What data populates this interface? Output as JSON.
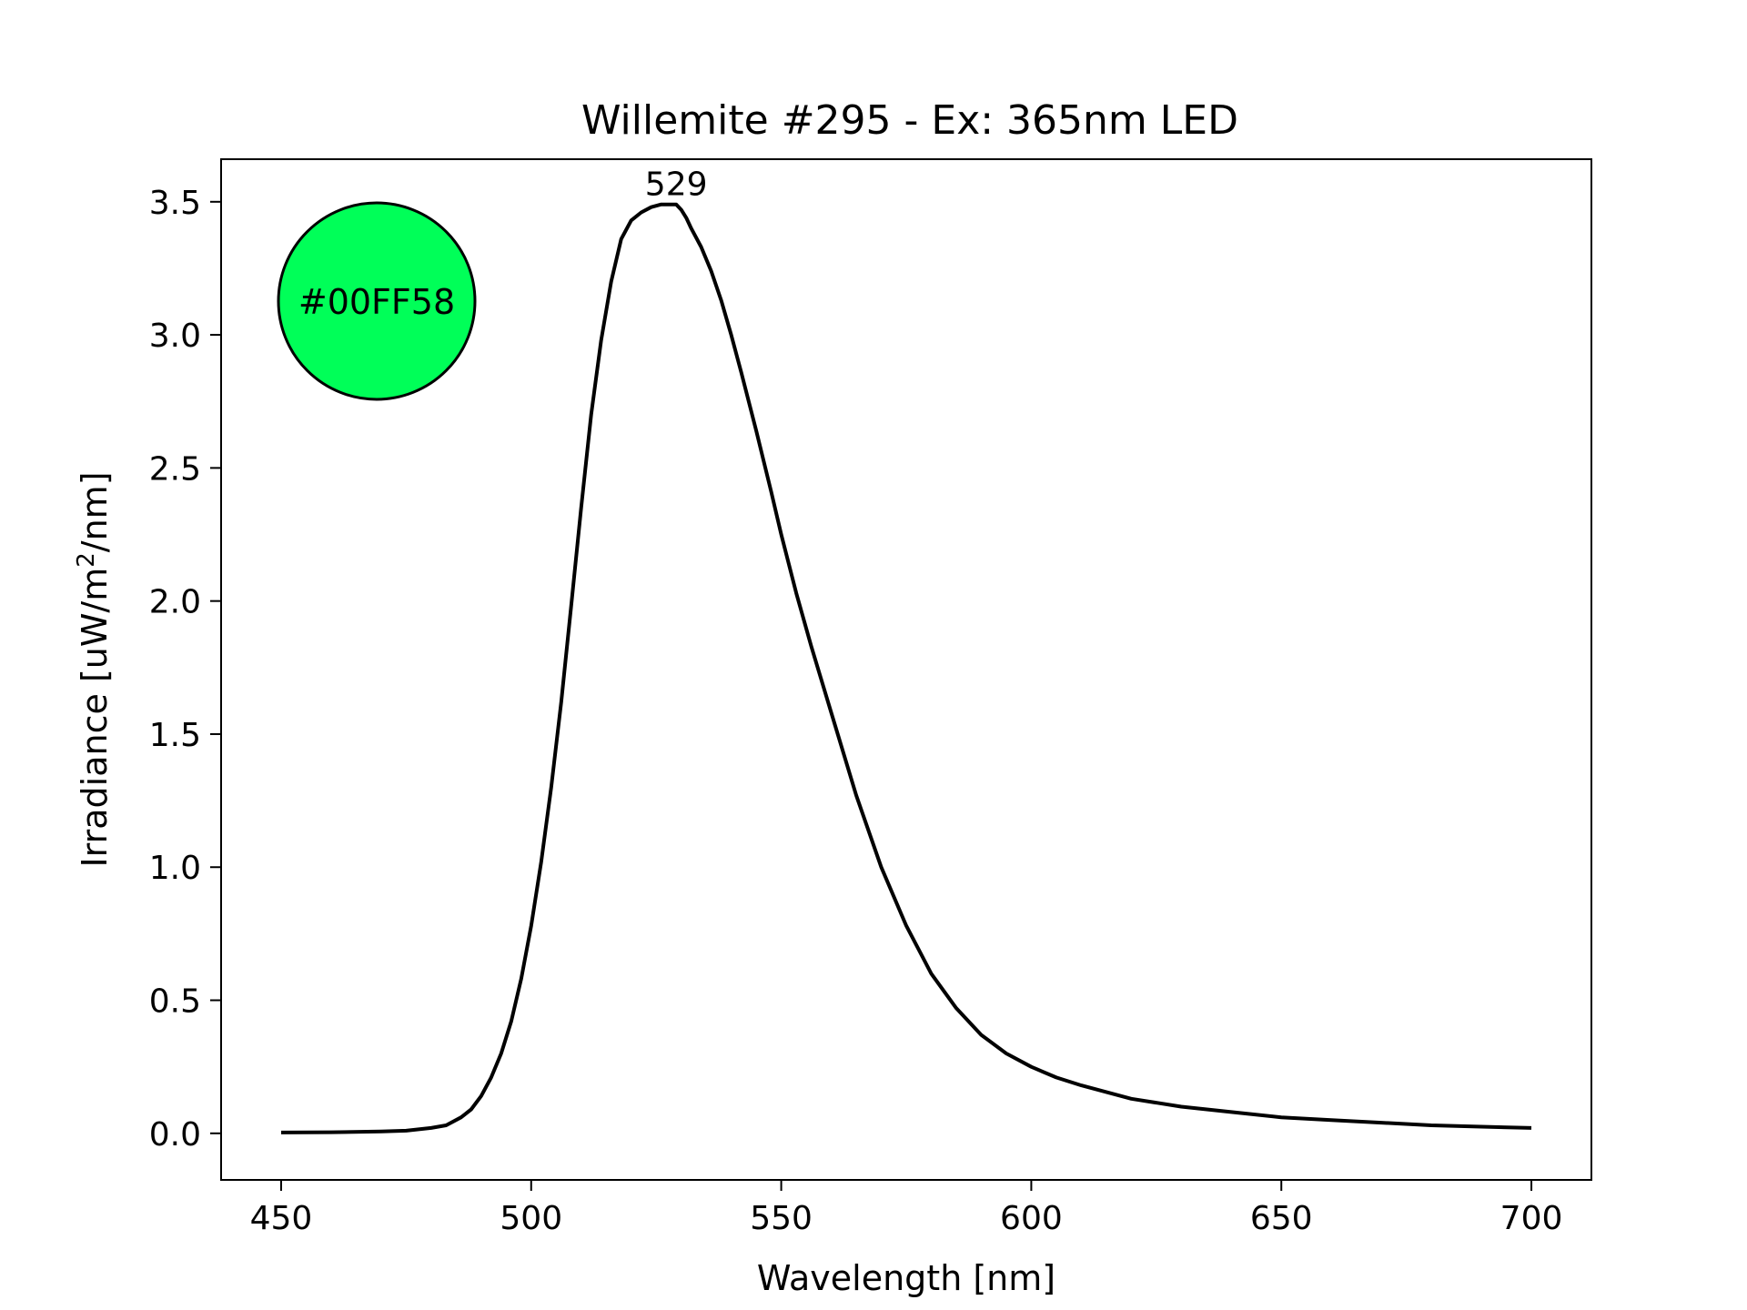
{
  "chart_data": {
    "type": "line",
    "title": "Willemite #295 - Ex: 365nm LED",
    "xlabel": "Wavelength [nm]",
    "ylabel_prefix": "Irradiance [uW/m",
    "ylabel_sup": "2",
    "ylabel_suffix": "/nm]",
    "xlim": [
      438,
      712
    ],
    "ylim": [
      -0.175,
      3.66
    ],
    "xticks": [
      450,
      500,
      550,
      600,
      650,
      700
    ],
    "xtick_labels": [
      "450",
      "500",
      "550",
      "600",
      "650",
      "700"
    ],
    "yticks": [
      0.0,
      0.5,
      1.0,
      1.5,
      2.0,
      2.5,
      3.0,
      3.5
    ],
    "ytick_labels": [
      "0.0",
      "0.5",
      "1.0",
      "1.5",
      "2.0",
      "2.5",
      "3.0",
      "3.5"
    ],
    "grid": false,
    "line_color": "#000000",
    "series": [
      {
        "x": [
          450,
          460,
          470,
          475,
          480,
          483,
          486,
          488,
          490,
          492,
          494,
          496,
          498,
          500,
          502,
          504,
          506,
          508,
          510,
          512,
          514,
          516,
          518,
          520,
          522,
          524,
          526,
          527,
          528,
          529,
          530,
          531,
          532,
          534,
          536,
          538,
          540,
          542,
          545,
          548,
          550,
          553,
          556,
          560,
          565,
          570,
          575,
          580,
          585,
          590,
          595,
          600,
          605,
          610,
          620,
          630,
          640,
          650,
          660,
          670,
          680,
          690,
          700
        ],
        "y": [
          0.003,
          0.004,
          0.007,
          0.01,
          0.02,
          0.03,
          0.06,
          0.09,
          0.14,
          0.21,
          0.3,
          0.42,
          0.58,
          0.78,
          1.02,
          1.3,
          1.62,
          1.98,
          2.35,
          2.7,
          2.98,
          3.2,
          3.36,
          3.43,
          3.46,
          3.48,
          3.49,
          3.49,
          3.49,
          3.49,
          3.47,
          3.44,
          3.4,
          3.33,
          3.24,
          3.13,
          3.0,
          2.86,
          2.64,
          2.41,
          2.25,
          2.03,
          1.83,
          1.58,
          1.27,
          1.0,
          0.78,
          0.6,
          0.47,
          0.37,
          0.3,
          0.25,
          0.21,
          0.18,
          0.13,
          0.1,
          0.08,
          0.06,
          0.05,
          0.04,
          0.03,
          0.025,
          0.02
        ]
      }
    ],
    "annotations": [
      {
        "text": "529",
        "x": 529,
        "y": 3.49
      }
    ],
    "color_swatch": {
      "label": "#00FF58",
      "color": "#00FF58",
      "position": "top-left"
    }
  }
}
